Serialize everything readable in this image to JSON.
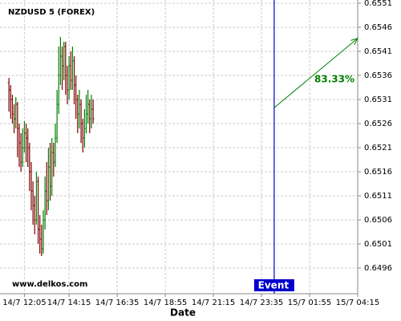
{
  "chart_data": {
    "type": "ohlc",
    "title": "NZDUSD 5 (FOREX)",
    "watermark": "www.delkos.com",
    "x_label": "Date",
    "up_color": "#008000",
    "down_color": "#800000",
    "grid": true,
    "xlim": [
      "14/7 10:54",
      "15/7 04:15"
    ],
    "ylim": [
      0.6491,
      0.6551
    ],
    "xticks": [
      "14/7 12:05",
      "14/7 14:15",
      "14/7 16:35",
      "14/7 18:55",
      "14/7 21:15",
      "14/7 23:35",
      "15/7 01:55",
      "15/7 04:15"
    ],
    "yticks": [
      0.6496,
      0.6501,
      0.6506,
      0.6511,
      0.6516,
      0.6521,
      0.6526,
      0.6531,
      0.6536,
      0.6541,
      0.6546,
      0.6551
    ],
    "x": [
      "14/7 11:20",
      "14/7 11:25",
      "14/7 11:30",
      "14/7 11:35",
      "14/7 11:40",
      "14/7 11:45",
      "14/7 11:50",
      "14/7 11:55",
      "14/7 12:00",
      "14/7 12:05",
      "14/7 12:10",
      "14/7 12:15",
      "14/7 12:20",
      "14/7 12:25",
      "14/7 12:30",
      "14/7 12:35",
      "14/7 12:40",
      "14/7 12:45",
      "14/7 12:50",
      "14/7 12:55",
      "14/7 13:00",
      "14/7 13:05",
      "14/7 13:10",
      "14/7 13:15",
      "14/7 13:20",
      "14/7 13:25",
      "14/7 13:30",
      "14/7 13:35",
      "14/7 13:40",
      "14/7 13:45",
      "14/7 13:50",
      "14/7 13:55",
      "14/7 14:00",
      "14/7 14:05",
      "14/7 14:10",
      "14/7 14:15",
      "14/7 14:20",
      "14/7 14:25",
      "14/7 14:30",
      "14/7 14:35",
      "14/7 14:40",
      "14/7 14:45",
      "14/7 14:50",
      "14/7 14:55",
      "14/7 15:00",
      "14/7 15:05",
      "14/7 15:10",
      "14/7 15:15",
      "14/7 15:20",
      "14/7 15:25"
    ],
    "open": [
      0.65345,
      0.6533,
      0.6531,
      0.6528,
      0.6527,
      0.653,
      0.6525,
      0.6522,
      0.6518,
      0.6521,
      0.6524,
      0.6523,
      0.6521,
      0.6516,
      0.6512,
      0.6509,
      0.6506,
      0.6514,
      0.6504,
      0.6502,
      0.65,
      0.6506,
      0.6512,
      0.651,
      0.6517,
      0.6513,
      0.652,
      0.6518,
      0.6523,
      0.653,
      0.6536,
      0.654,
      0.6538,
      0.6542,
      0.6536,
      0.6533,
      0.6538,
      0.6535,
      0.6539,
      0.6534,
      0.6531,
      0.6528,
      0.653,
      0.6526,
      0.6523,
      0.6525,
      0.6528,
      0.653,
      0.6527,
      0.6529
    ],
    "high": [
      0.65355,
      0.6534,
      0.6532,
      0.653,
      0.65315,
      0.65305,
      0.6526,
      0.6524,
      0.6525,
      0.65265,
      0.6526,
      0.6525,
      0.6522,
      0.6518,
      0.6514,
      0.6511,
      0.6516,
      0.6515,
      0.6507,
      0.6505,
      0.6508,
      0.6515,
      0.6518,
      0.6521,
      0.6522,
      0.6523,
      0.6522,
      0.6526,
      0.6533,
      0.6542,
      0.6544,
      0.6542,
      0.6543,
      0.6543,
      0.6538,
      0.654,
      0.6541,
      0.6542,
      0.654,
      0.6536,
      0.6532,
      0.6533,
      0.6531,
      0.6527,
      0.6529,
      0.6532,
      0.6533,
      0.6531,
      0.6532,
      0.6531
    ],
    "low": [
      0.65285,
      0.6527,
      0.6526,
      0.6524,
      0.6525,
      0.6519,
      0.6517,
      0.6516,
      0.6517,
      0.652,
      0.6518,
      0.6517,
      0.6512,
      0.6508,
      0.6505,
      0.6503,
      0.6505,
      0.6501,
      0.6499,
      0.64985,
      0.6499,
      0.6504,
      0.6507,
      0.6508,
      0.651,
      0.6511,
      0.6515,
      0.6517,
      0.6522,
      0.6528,
      0.6534,
      0.6533,
      0.6535,
      0.6532,
      0.653,
      0.6531,
      0.6533,
      0.6533,
      0.653,
      0.6527,
      0.6524,
      0.6525,
      0.6522,
      0.652,
      0.6521,
      0.6524,
      0.6526,
      0.6524,
      0.6525,
      0.6526
    ],
    "close": [
      0.6533,
      0.6531,
      0.6528,
      0.6527,
      0.653,
      0.6525,
      0.6522,
      0.6518,
      0.6521,
      0.6524,
      0.6523,
      0.6521,
      0.6516,
      0.6512,
      0.6509,
      0.6506,
      0.6514,
      0.6504,
      0.6502,
      0.65,
      0.6506,
      0.6512,
      0.651,
      0.6517,
      0.6513,
      0.652,
      0.6518,
      0.6523,
      0.653,
      0.6536,
      0.654,
      0.6538,
      0.6542,
      0.6536,
      0.6533,
      0.6538,
      0.6535,
      0.6539,
      0.6534,
      0.6531,
      0.6528,
      0.653,
      0.6526,
      0.6523,
      0.6525,
      0.6528,
      0.653,
      0.6527,
      0.6529,
      0.6527
    ],
    "event": {
      "label": "Event",
      "x": "15/7 00:12",
      "color": "#0000cc"
    },
    "arrow": {
      "label": "83.33%",
      "x": [
        "15/7 00:12",
        "15/7 04:15"
      ],
      "y": [
        0.65293,
        0.65437
      ],
      "color": "#008000"
    }
  }
}
